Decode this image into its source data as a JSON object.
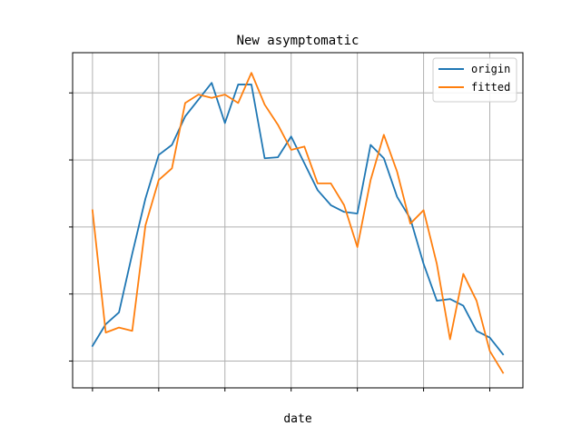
{
  "chart_data": {
    "type": "line",
    "title": "New asymptomatic",
    "xlabel": "date",
    "ylabel": "",
    "x": [
      0,
      1,
      2,
      3,
      4,
      5,
      6,
      7,
      8,
      9,
      10,
      11,
      12,
      13,
      14,
      15,
      16,
      17,
      18,
      19,
      20,
      21,
      22,
      23,
      24,
      25,
      26,
      27,
      28,
      29,
      30,
      31
    ],
    "xlim": [
      -1.5,
      32.5
    ],
    "ylim": [
      0,
      100
    ],
    "grid": true,
    "legend_position": "top-right",
    "series": [
      {
        "name": "origin",
        "color": "#1f77b4",
        "values": [
          12.5,
          19.0,
          22.5,
          40.0,
          56.5,
          69.5,
          72.5,
          81.0,
          86.0,
          91.0,
          79.0,
          90.5,
          90.5,
          68.5,
          68.8,
          75.0,
          67.0,
          59.0,
          54.5,
          52.5,
          52.0,
          72.5,
          68.5,
          57.0,
          50.5,
          37.0,
          26.0,
          26.5,
          24.5,
          17.0,
          15.0,
          10.0
        ]
      },
      {
        "name": "fitted",
        "color": "#ff7f0e",
        "values": [
          53.0,
          16.5,
          18.0,
          17.0,
          48.5,
          62.0,
          65.5,
          85.0,
          87.5,
          86.5,
          87.5,
          85.0,
          94.0,
          84.5,
          78.5,
          71.0,
          72.0,
          61.0,
          61.0,
          54.5,
          42.0,
          62.0,
          75.5,
          64.5,
          49.0,
          53.0,
          37.0,
          14.5,
          34.0,
          26.0,
          11.0,
          4.5
        ]
      }
    ]
  }
}
